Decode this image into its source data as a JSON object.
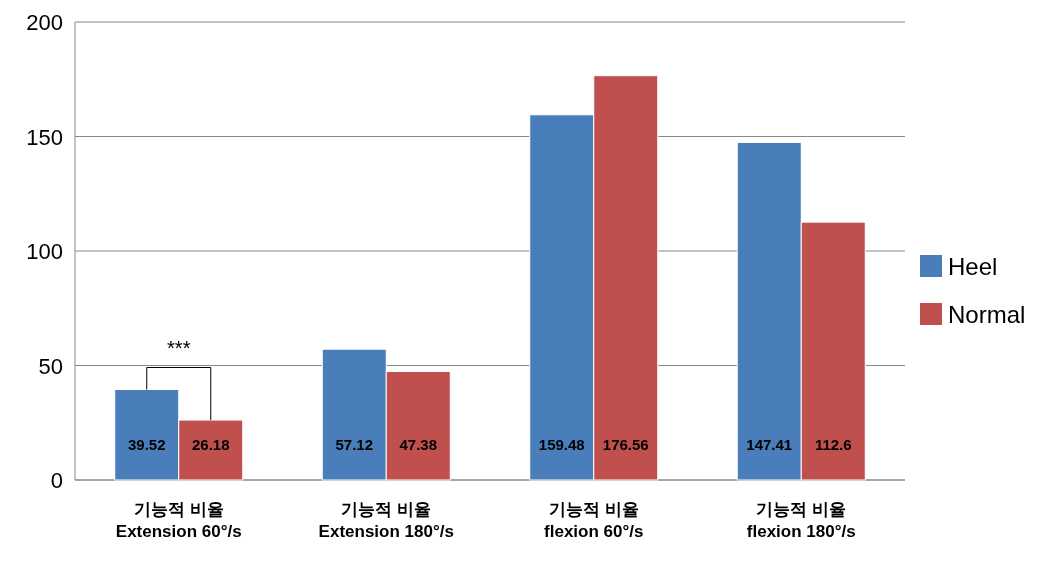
{
  "chart_data": {
    "type": "bar",
    "categories": [
      "기능적 비율\nExtension 60°/s",
      "기능적 비율\nExtension 180°/s",
      "기능적 비율\nflexion 60°/s",
      "기능적 비율\nflexion 180°/s"
    ],
    "series": [
      {
        "name": "Heel",
        "color": "#4a7ebb",
        "values": [
          39.52,
          57.12,
          159.48,
          147.41
        ]
      },
      {
        "name": "Normal",
        "color": "#c0504d",
        "values": [
          26.18,
          47.38,
          176.56,
          112.6
        ]
      }
    ],
    "ylim": [
      0,
      200
    ],
    "yticks": [
      0,
      50,
      100,
      150,
      200
    ],
    "grid": "y",
    "legend": "right",
    "data_labels": true,
    "annotations": [
      "***"
    ]
  }
}
